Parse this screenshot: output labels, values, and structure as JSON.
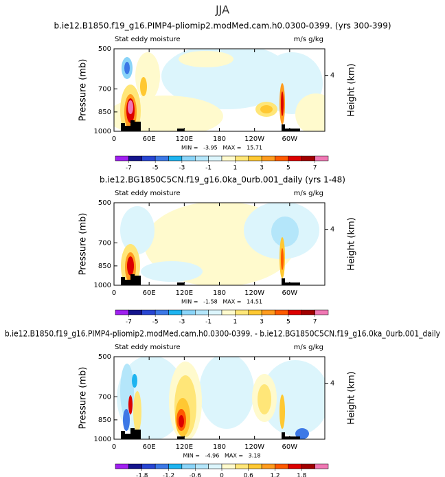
{
  "title": "JJA",
  "chart_data": [
    {
      "type": "contour",
      "title": "b.ie12.B1850.f19_g16.PIMP4-pliomip2.modMed.cam.h0.0300-0399. (yrs 300-399)",
      "left_label": "Stat eddy moisture",
      "right_label": "m/s g/kg",
      "xlim": [
        0,
        360
      ],
      "xticks": [
        0,
        {
          "value": 60,
          "label": "60E"
        },
        {
          "value": 120,
          "label": "120E"
        },
        180,
        {
          "value": 240,
          "label": "120W"
        },
        {
          "value": 300,
          "label": "60W"
        }
      ],
      "ylim": [
        1000,
        500
      ],
      "ylog": true,
      "yticks": [
        500,
        700,
        850,
        1000
      ],
      "ylabel": "Pressure (mb)",
      "y2lim": [
        0,
        5.9
      ],
      "y2ticks": [
        4
      ],
      "y2label": "Height (km)",
      "stats": "MIN =   -3.95   MAX =   15.71",
      "colorbar": {
        "clim": [
          -8,
          8
        ],
        "ticks": [
          -7,
          -5,
          -3,
          -1,
          1,
          3,
          5,
          7
        ],
        "colors": [
          "#a020f0",
          "#14148c",
          "#2846d2",
          "#3c78e6",
          "#1eb4f0",
          "#8ad4f8",
          "#b4e6fa",
          "#dcf5fc",
          "#fffacd",
          "#ffe678",
          "#ffc832",
          "#ff9b1e",
          "#ff5a00",
          "#dc0000",
          "#a00000",
          "#f078b4"
        ]
      }
    },
    {
      "type": "contour",
      "title": "b.ie12.BG1850C5CN.f19_g16.0ka_0urb.001_daily (yrs 1-48)",
      "left_label": "Stat eddy moisture",
      "right_label": "m/s g/kg",
      "xlim": [
        0,
        360
      ],
      "xticks": [
        0,
        {
          "value": 60,
          "label": "60E"
        },
        {
          "value": 120,
          "label": "120E"
        },
        180,
        {
          "value": 240,
          "label": "120W"
        },
        {
          "value": 300,
          "label": "60W"
        }
      ],
      "ylim": [
        1000,
        500
      ],
      "ylog": true,
      "yticks": [
        500,
        700,
        850,
        1000
      ],
      "ylabel": "Pressure (mb)",
      "y2lim": [
        0,
        5.9
      ],
      "y2ticks": [
        4
      ],
      "y2label": "Height (km)",
      "stats": "MIN =   -1.58   MAX =   14.51",
      "colorbar": {
        "clim": [
          -8,
          8
        ],
        "ticks": [
          -7,
          -5,
          -3,
          -1,
          1,
          3,
          5,
          7
        ],
        "colors": [
          "#a020f0",
          "#14148c",
          "#2846d2",
          "#3c78e6",
          "#1eb4f0",
          "#8ad4f8",
          "#b4e6fa",
          "#dcf5fc",
          "#fffacd",
          "#ffe678",
          "#ffc832",
          "#ff9b1e",
          "#ff5a00",
          "#dc0000",
          "#a00000",
          "#f078b4"
        ]
      }
    },
    {
      "type": "contour",
      "title": "b.ie12.B1850.f19_g16.PIMP4-pliomip2.modMed.cam.h0.0300-0399. - b.ie12.BG1850C5CN.f19_g16.0ka_0urb.001_daily",
      "left_label": "Stat eddy moisture",
      "right_label": "m/s g/kg",
      "xlim": [
        0,
        360
      ],
      "xticks": [
        0,
        {
          "value": 60,
          "label": "60E"
        },
        {
          "value": 120,
          "label": "120E"
        },
        180,
        {
          "value": 240,
          "label": "120W"
        },
        {
          "value": 300,
          "label": "60W"
        }
      ],
      "ylim": [
        1000,
        500
      ],
      "ylog": true,
      "yticks": [
        500,
        700,
        850,
        1000
      ],
      "ylabel": "Pressure (mb)",
      "y2lim": [
        0,
        5.9
      ],
      "y2ticks": [
        4
      ],
      "y2label": "Height (km)",
      "stats": "MIN =   -4.96   MAX =   3.18",
      "colorbar": {
        "clim": [
          -2.4,
          2.4
        ],
        "ticks": [
          -1.8,
          -1.2,
          -0.6,
          0,
          0.6,
          1.2,
          1.8
        ],
        "colors": [
          "#a020f0",
          "#14148c",
          "#2846d2",
          "#3c78e6",
          "#1eb4f0",
          "#8ad4f8",
          "#b4e6fa",
          "#dcf5fc",
          "#fffacd",
          "#ffe678",
          "#ffc832",
          "#ff9b1e",
          "#ff5a00",
          "#dc0000",
          "#a00000",
          "#f078b4"
        ]
      }
    }
  ]
}
